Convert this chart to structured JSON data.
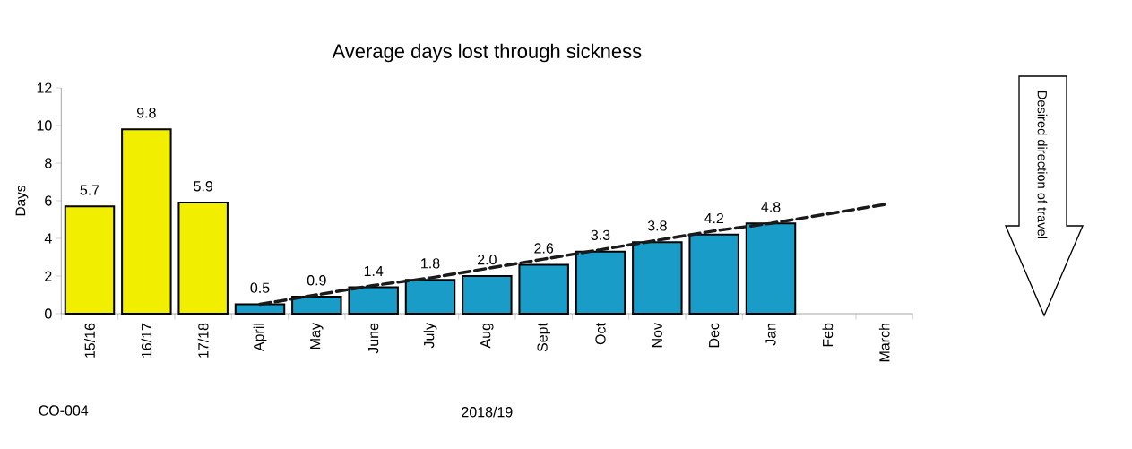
{
  "chart_data": {
    "type": "bar",
    "title": "Average days lost through sickness",
    "xlabel": "2018/19",
    "ylabel": "Days",
    "categories": [
      "15/16",
      "16/17",
      "17/18",
      "April",
      "May",
      "June",
      "July",
      "Aug",
      "Sept",
      "Oct",
      "Nov",
      "Dec",
      "Jan",
      "Feb",
      "March"
    ],
    "ylim": [
      0,
      12
    ],
    "yticks": [
      0,
      2,
      4,
      6,
      8,
      10,
      12
    ],
    "series": [
      {
        "colors": [
          "#f2ee00",
          "#f2ee00",
          "#f2ee00",
          "#1a9cc8",
          "#1a9cc8",
          "#1a9cc8",
          "#1a9cc8",
          "#1a9cc8",
          "#1a9cc8",
          "#1a9cc8",
          "#1a9cc8",
          "#1a9cc8",
          "#1a9cc8",
          "#1a9cc8",
          "#1a9cc8"
        ],
        "values": [
          5.7,
          9.8,
          5.9,
          0.5,
          0.9,
          1.4,
          1.8,
          2.0,
          2.6,
          3.3,
          3.8,
          4.2,
          4.8,
          null,
          null
        ],
        "value_labels": [
          "5.7",
          "9.8",
          "5.9",
          "0.5",
          "0.9",
          "1.4",
          "1.8",
          "2.0",
          "2.6",
          "3.3",
          "3.8",
          "4.2",
          "4.8",
          null,
          null
        ]
      },
      {
        "type": "line",
        "line_style": "dashed",
        "color": "#1a1a1a",
        "values": [
          null,
          null,
          null,
          0.5,
          1.0,
          1.5,
          1.9,
          2.4,
          2.9,
          3.4,
          3.9,
          4.4,
          4.8,
          5.3,
          5.8
        ]
      }
    ],
    "annotations": [
      "CO-004",
      "Desired direction of travel"
    ]
  }
}
